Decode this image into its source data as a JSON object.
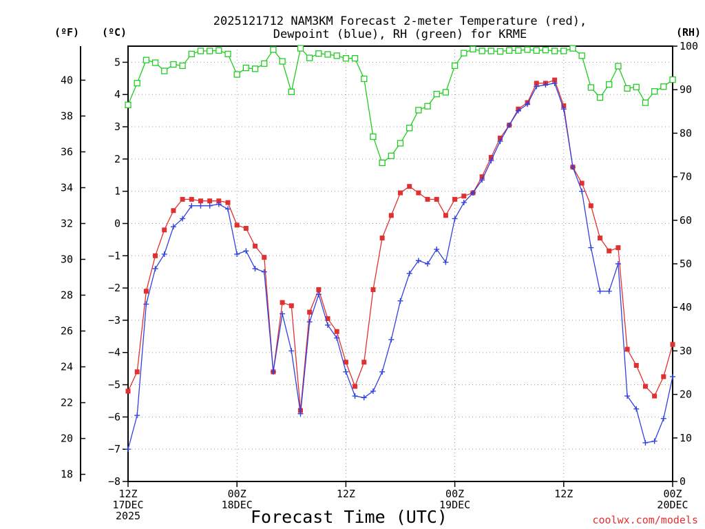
{
  "chart_data": {
    "type": "line",
    "title_line1": "2025121712 NAM3KM Forecast 2-meter Temperature (red),",
    "title_line2": "Dewpoint (blue), RH (green) for KRME",
    "xlabel": "Forecast Time (UTC)",
    "credit": "coolwx.com/models",
    "units": {
      "left_f": "(ºF)",
      "left_c": "(ºC)",
      "right": "(RH)"
    },
    "x_hours": [
      0,
      1,
      2,
      3,
      4,
      5,
      6,
      7,
      8,
      9,
      10,
      11,
      12,
      13,
      14,
      15,
      16,
      17,
      18,
      19,
      20,
      21,
      22,
      23,
      24,
      25,
      26,
      27,
      28,
      29,
      30,
      31,
      32,
      33,
      34,
      35,
      36,
      37,
      38,
      39,
      40,
      41,
      42,
      43,
      44,
      45,
      46,
      47,
      48,
      49,
      50,
      51,
      52,
      53,
      54,
      55,
      56,
      57,
      58,
      59,
      60
    ],
    "x_ticks": [
      {
        "h": 0,
        "l1": "12Z",
        "l2": "17DEC",
        "l3": "2025"
      },
      {
        "h": 12,
        "l1": "00Z",
        "l2": "18DEC",
        "l3": ""
      },
      {
        "h": 24,
        "l1": "12Z",
        "l2": "",
        "l3": ""
      },
      {
        "h": 36,
        "l1": "00Z",
        "l2": "19DEC",
        "l3": ""
      },
      {
        "h": 48,
        "l1": "12Z",
        "l2": "",
        "l3": ""
      },
      {
        "h": 60,
        "l1": "00Z",
        "l2": "20DEC",
        "l3": ""
      }
    ],
    "ylim_c": [
      -8,
      5.5
    ],
    "ylim_f": [
      17.6,
      41.9
    ],
    "ylim_rh": [
      0,
      100
    ],
    "yticks_c": [
      -8,
      -7,
      -6,
      -5,
      -4,
      -3,
      -2,
      -1,
      0,
      1,
      2,
      3,
      4,
      5
    ],
    "yticks_c_labels": [
      "−8",
      "−7",
      "−6",
      "−5",
      "−4",
      "−3",
      "−2",
      "−1",
      "0",
      "1",
      "2",
      "3",
      "4",
      "5"
    ],
    "yticks_f": [
      18,
      20,
      22,
      24,
      26,
      28,
      30,
      32,
      34,
      36,
      38,
      40
    ],
    "yticks_f_labels": [
      "18",
      "20",
      "22",
      "24",
      "26",
      "28",
      "30",
      "32",
      "34",
      "36",
      "38",
      "40"
    ],
    "yticks_rh": [
      0,
      10,
      20,
      30,
      40,
      50,
      60,
      70,
      80,
      90,
      100
    ],
    "yticks_rh_labels": [
      "0",
      "10",
      "20",
      "30",
      "40",
      "50",
      "60",
      "70",
      "80",
      "90",
      "100"
    ],
    "grid": true,
    "series": [
      {
        "name": "Temperature",
        "color": "#e03030",
        "marker": "filled-square",
        "values": [
          -5.2,
          -4.6,
          -2.1,
          -1.0,
          -0.2,
          0.4,
          0.75,
          0.75,
          0.7,
          0.7,
          0.7,
          0.65,
          -0.05,
          -0.15,
          -0.7,
          -1.05,
          -4.6,
          -2.45,
          -2.55,
          -5.8,
          -2.75,
          -2.05,
          -2.95,
          -3.35,
          -4.3,
          -5.05,
          -4.3,
          -2.05,
          -0.45,
          0.25,
          0.95,
          1.15,
          0.95,
          0.75,
          0.75,
          0.25,
          0.75,
          0.85,
          0.95,
          1.45,
          2.05,
          2.65,
          3.05,
          3.55,
          3.75,
          4.35,
          4.35,
          4.45,
          3.65,
          1.75,
          1.25,
          0.55,
          -0.45,
          -0.85,
          -0.75,
          -3.9,
          -4.4,
          -5.05,
          -5.35,
          -4.75,
          -3.75
        ]
      },
      {
        "name": "Dewpoint",
        "color": "#3040e0",
        "marker": "plus",
        "values": [
          -7.0,
          -5.95,
          -2.5,
          -1.4,
          -0.95,
          -0.1,
          0.15,
          0.55,
          0.55,
          0.55,
          0.6,
          0.45,
          -0.95,
          -0.85,
          -1.4,
          -1.5,
          -4.6,
          -2.8,
          -3.95,
          -5.9,
          -3.05,
          -2.2,
          -3.15,
          -3.55,
          -4.6,
          -5.35,
          -5.4,
          -5.2,
          -4.6,
          -3.6,
          -2.4,
          -1.55,
          -1.15,
          -1.25,
          -0.8,
          -1.2,
          0.15,
          0.65,
          0.95,
          1.35,
          1.95,
          2.55,
          3.05,
          3.5,
          3.7,
          4.25,
          4.3,
          4.35,
          3.55,
          1.75,
          1.0,
          -0.75,
          -2.1,
          -2.1,
          -1.25,
          -5.35,
          -5.75,
          -6.8,
          -6.75,
          -6.05,
          -4.75
        ]
      },
      {
        "name": "RH",
        "color": "#20cc20",
        "marker": "open-square",
        "values": [
          86.5,
          91.5,
          96.8,
          96.2,
          94.3,
          95.8,
          95.5,
          98.2,
          98.9,
          98.9,
          99.0,
          98.2,
          93.5,
          95.0,
          94.8,
          96.0,
          99.2,
          96.5,
          89.5,
          99.5,
          97.3,
          98.3,
          98.1,
          97.8,
          97.2,
          97.2,
          92.5,
          79.2,
          73.2,
          74.8,
          77.7,
          81.2,
          85.3,
          86.2,
          89.0,
          89.4,
          95.5,
          98.4,
          99.3,
          98.9,
          98.9,
          98.8,
          99.0,
          99.0,
          99.2,
          99.0,
          99.1,
          98.9,
          98.9,
          99.5,
          97.8,
          90.5,
          88.2,
          91.2,
          95.4,
          90.3,
          90.6,
          87.0,
          89.6,
          90.7,
          92.3
        ]
      }
    ]
  }
}
